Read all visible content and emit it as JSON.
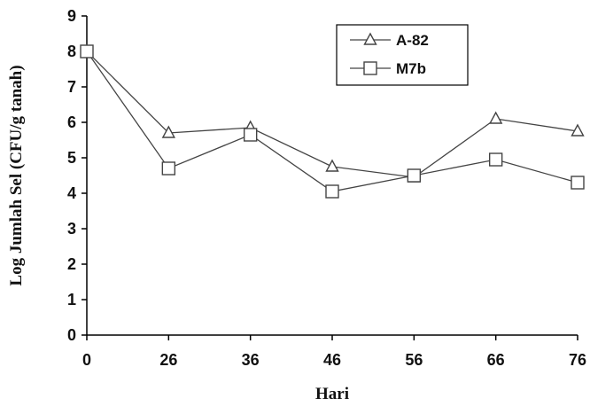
{
  "chart_data": {
    "type": "line",
    "title": "",
    "xlabel": "Hari",
    "ylabel": "Log Jumlah Sel (CFU/g tanah)",
    "categories": [
      "0",
      "26",
      "36",
      "46",
      "56",
      "66",
      "76"
    ],
    "ylim": [
      0,
      9
    ],
    "yticks": [
      "0",
      "1",
      "2",
      "3",
      "4",
      "5",
      "6",
      "7",
      "8",
      "9"
    ],
    "grid": false,
    "legend_position": "top-right",
    "series": [
      {
        "name": "A-82",
        "marker": "triangle",
        "values": [
          8.0,
          5.7,
          5.85,
          4.75,
          4.45,
          6.1,
          5.75
        ]
      },
      {
        "name": "M7b",
        "marker": "square",
        "values": [
          8.0,
          4.7,
          5.65,
          4.05,
          4.5,
          4.95,
          4.3
        ]
      }
    ],
    "colors": {
      "line": "#444444",
      "marker_fill": "#ffffff",
      "axis": "#000000"
    }
  }
}
